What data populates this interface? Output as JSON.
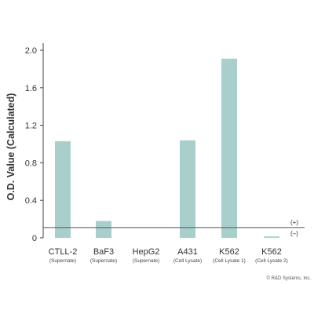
{
  "chart_data": {
    "type": "bar",
    "categories": [
      {
        "name": "CTLL-2",
        "sub": "(Supernate)"
      },
      {
        "name": "BaF3",
        "sub": "(Supernate)"
      },
      {
        "name": "HepG2",
        "sub": "(Supernate)"
      },
      {
        "name": "A431",
        "sub": "(Cell Lysate)"
      },
      {
        "name": "K562",
        "sub": "(Cell Lysate 1)"
      },
      {
        "name": "K562",
        "sub": "(Cell Lysate 2)"
      }
    ],
    "values": [
      1.03,
      0.18,
      0.0,
      1.04,
      1.91,
      0.015
    ],
    "title": "",
    "xlabel": "",
    "ylabel": "O.D. Value (Calculated)",
    "ylim": [
      0,
      2.0
    ],
    "yticks": [
      0,
      0.4,
      0.8,
      1.2,
      1.6,
      2.0
    ],
    "ytick_labels": [
      "0",
      "0.4",
      "0.8",
      "1.2",
      "1.6",
      "2.0"
    ],
    "threshold": {
      "value": 0.11,
      "above_label": "(+)",
      "below_label": "(–)"
    },
    "bar_color": "#a9cfcd",
    "grid": false,
    "credit": "© R&D Systems, Inc."
  }
}
